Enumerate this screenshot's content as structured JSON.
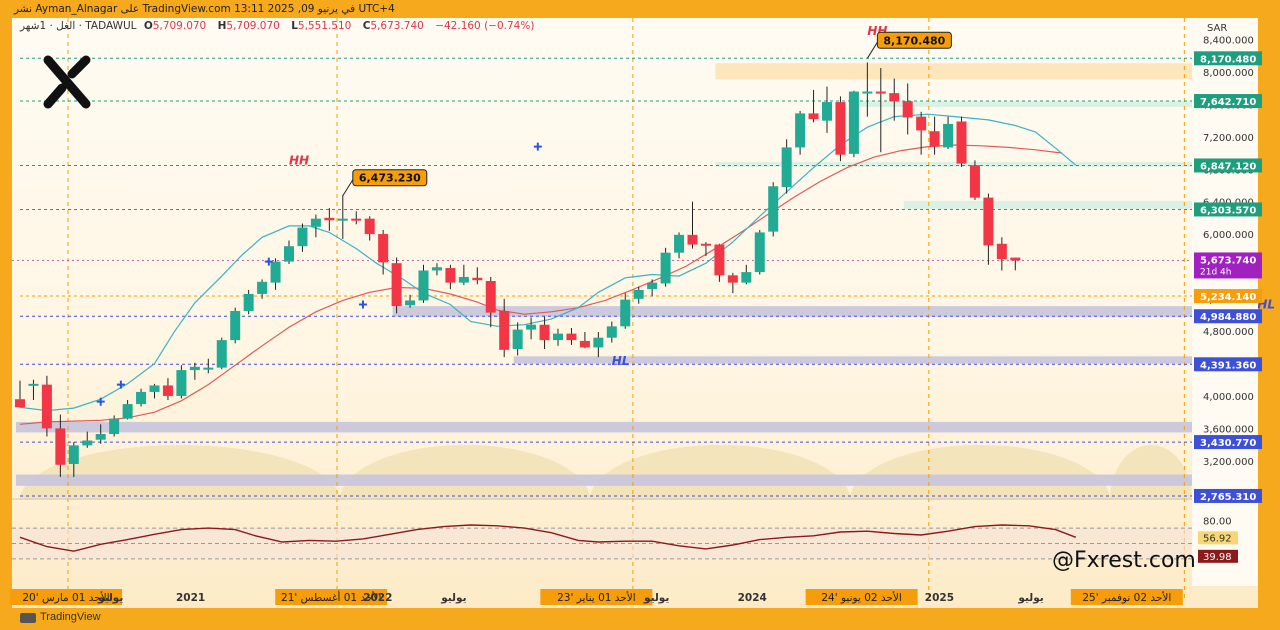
{
  "header": {
    "publish_line": "نشر Ayman_Alnagar على TradingView.com في يرنيو 09, 2025 13:11 UTC+4",
    "symbol_line": "الغل · 1شهر · TADAWUL",
    "o_label": "O",
    "o_value": "5,709.070",
    "h_label": "H",
    "h_value": "5,709.070",
    "l_label": "L",
    "l_value": "5,551.510",
    "c_label": "C",
    "c_value": "5,673.740",
    "change": "−42.160 (−0.74%)",
    "currency": "SAR"
  },
  "watermark": "@Fxrest.com",
  "brand_footer": "TradingView",
  "colors": {
    "up": "#22ab94",
    "down": "#f23645",
    "ema_fast": "#3bb3c3",
    "ema_slow": "#e05a5a",
    "zone_purple": "#c8c4dd",
    "zone_green": "#d6efe3",
    "zone_orange": "#fde3b6",
    "label_green": "#1f9e7d",
    "label_blue": "#3e4fd8",
    "label_orange": "#f59d0a",
    "current_price": "#a020c0",
    "rsi_line": "#8b1a1a"
  },
  "chart_data": {
    "type": "candlestick",
    "timeframe": "monthly",
    "candles": [
      [
        3960,
        3860,
        4190,
        3860
      ],
      [
        4150,
        4150,
        4200,
        3950
      ],
      [
        4140,
        3600,
        4250,
        3500
      ],
      [
        3600,
        3150,
        3770,
        3000
      ],
      [
        3160,
        3390,
        3430,
        3000
      ],
      [
        3390,
        3450,
        3560,
        3360
      ],
      [
        3460,
        3530,
        3650,
        3410
      ],
      [
        3530,
        3720,
        3760,
        3500
      ],
      [
        3720,
        3900,
        3950,
        3710
      ],
      [
        3900,
        4050,
        4090,
        3870
      ],
      [
        4050,
        4130,
        4150,
        3970
      ],
      [
        4130,
        4000,
        4220,
        3950
      ],
      [
        4000,
        4320,
        4380,
        3970
      ],
      [
        4320,
        4360,
        4410,
        4200
      ],
      [
        4350,
        4350,
        4460,
        4280
      ],
      [
        4350,
        4690,
        4720,
        4330
      ],
      [
        4690,
        5050,
        5090,
        4650
      ],
      [
        5050,
        5260,
        5310,
        5010
      ],
      [
        5260,
        5410,
        5440,
        5200
      ],
      [
        5400,
        5660,
        5700,
        5310
      ],
      [
        5660,
        5850,
        5920,
        5630
      ],
      [
        5850,
        6080,
        6130,
        5780
      ],
      [
        6090,
        6190,
        6240,
        5960
      ],
      [
        6200,
        6170,
        6320,
        6040
      ],
      [
        6170,
        6190,
        6480,
        5940
      ],
      [
        6190,
        6180,
        6280,
        6120
      ],
      [
        6190,
        6000,
        6220,
        5920
      ],
      [
        6000,
        5650,
        6050,
        5500
      ],
      [
        5640,
        5110,
        5710,
        5020
      ],
      [
        5120,
        5180,
        5250,
        5090
      ],
      [
        5180,
        5550,
        5620,
        5150
      ],
      [
        5550,
        5590,
        5640,
        5490
      ],
      [
        5580,
        5400,
        5620,
        5320
      ],
      [
        5400,
        5470,
        5620,
        5370
      ],
      [
        5460,
        5430,
        5590,
        5380
      ],
      [
        5420,
        5030,
        5470,
        4850
      ],
      [
        5050,
        4570,
        5200,
        4480
      ],
      [
        4580,
        4820,
        4910,
        4500
      ],
      [
        4820,
        4880,
        4970,
        4700
      ],
      [
        4880,
        4690,
        4980,
        4580
      ],
      [
        4690,
        4770,
        4830,
        4620
      ],
      [
        4770,
        4690,
        4840,
        4630
      ],
      [
        4680,
        4600,
        4790,
        4590
      ],
      [
        4600,
        4720,
        4790,
        4480
      ],
      [
        4720,
        4860,
        4920,
        4660
      ],
      [
        4860,
        5190,
        5270,
        4830
      ],
      [
        5200,
        5310,
        5350,
        5140
      ],
      [
        5320,
        5400,
        5440,
        5230
      ],
      [
        5390,
        5770,
        5830,
        5350
      ],
      [
        5770,
        5990,
        6020,
        5700
      ],
      [
        5990,
        5870,
        6400,
        5820
      ],
      [
        5880,
        5860,
        5900,
        5730
      ],
      [
        5870,
        5490,
        5880,
        5410
      ],
      [
        5490,
        5400,
        5520,
        5270
      ],
      [
        5400,
        5530,
        5620,
        5380
      ],
      [
        5530,
        6020,
        6050,
        5500
      ],
      [
        6030,
        6590,
        6640,
        5970
      ],
      [
        6580,
        7070,
        7170,
        6500
      ],
      [
        7070,
        7490,
        7520,
        6980
      ],
      [
        7490,
        7420,
        7780,
        7380
      ],
      [
        7400,
        7630,
        7820,
        7250
      ],
      [
        7630,
        6980,
        7700,
        6900
      ],
      [
        6990,
        7760,
        7770,
        6950
      ],
      [
        7740,
        7760,
        8120,
        7450
      ],
      [
        7760,
        7740,
        8050,
        7010
      ],
      [
        7740,
        7640,
        7920,
        7400
      ],
      [
        7640,
        7440,
        7860,
        7230
      ],
      [
        7450,
        7280,
        7510,
        6980
      ],
      [
        7270,
        7080,
        7450,
        6980
      ],
      [
        7070,
        7360,
        7450,
        7050
      ],
      [
        7390,
        6870,
        7450,
        6830
      ],
      [
        6850,
        6450,
        6910,
        6420
      ],
      [
        6450,
        5860,
        6500,
        5620
      ],
      [
        5880,
        5690,
        5960,
        5550
      ],
      [
        5709,
        5674,
        5709,
        5552
      ]
    ],
    "ema_fast": [
      [
        0,
        3860
      ],
      [
        4,
        3820
      ],
      [
        8,
        3850
      ],
      [
        12,
        3960
      ],
      [
        16,
        4150
      ],
      [
        20,
        4400
      ],
      [
        23,
        4800
      ],
      [
        26,
        5150
      ],
      [
        30,
        5480
      ],
      [
        33,
        5740
      ],
      [
        36,
        5960
      ],
      [
        40,
        6100
      ],
      [
        43,
        6100
      ],
      [
        46,
        6020
      ],
      [
        50,
        5820
      ],
      [
        53,
        5640
      ],
      [
        57,
        5440
      ],
      [
        60,
        5270
      ],
      [
        64,
        5130
      ],
      [
        67,
        4920
      ],
      [
        71,
        4860
      ],
      [
        75,
        4880
      ],
      [
        79,
        4950
      ],
      [
        83,
        5090
      ],
      [
        86,
        5280
      ],
      [
        90,
        5460
      ],
      [
        94,
        5500
      ],
      [
        98,
        5480
      ],
      [
        102,
        5640
      ],
      [
        106,
        5900
      ],
      [
        110,
        6220
      ],
      [
        114,
        6520
      ],
      [
        118,
        6820
      ],
      [
        122,
        7100
      ],
      [
        126,
        7320
      ],
      [
        130,
        7450
      ],
      [
        135,
        7480
      ],
      [
        139,
        7450
      ],
      [
        144,
        7410
      ],
      [
        148,
        7340
      ],
      [
        151,
        7260
      ],
      [
        154,
        7060
      ],
      [
        157,
        6850
      ]
    ],
    "ema_slow": [
      [
        0,
        3650
      ],
      [
        4,
        3680
      ],
      [
        8,
        3690
      ],
      [
        12,
        3700
      ],
      [
        16,
        3730
      ],
      [
        20,
        3800
      ],
      [
        24,
        3940
      ],
      [
        28,
        4140
      ],
      [
        32,
        4380
      ],
      [
        36,
        4620
      ],
      [
        40,
        4850
      ],
      [
        44,
        5040
      ],
      [
        48,
        5180
      ],
      [
        52,
        5280
      ],
      [
        56,
        5340
      ],
      [
        60,
        5330
      ],
      [
        64,
        5260
      ],
      [
        68,
        5160
      ],
      [
        71,
        5060
      ],
      [
        75,
        5010
      ],
      [
        79,
        5040
      ],
      [
        83,
        5090
      ],
      [
        87,
        5180
      ],
      [
        91,
        5310
      ],
      [
        95,
        5450
      ],
      [
        99,
        5600
      ],
      [
        103,
        5800
      ],
      [
        107,
        6010
      ],
      [
        111,
        6230
      ],
      [
        115,
        6450
      ],
      [
        119,
        6650
      ],
      [
        123,
        6820
      ],
      [
        127,
        6950
      ],
      [
        131,
        7030
      ],
      [
        135,
        7080
      ],
      [
        139,
        7100
      ],
      [
        143,
        7090
      ],
      [
        147,
        7070
      ],
      [
        151,
        7040
      ],
      [
        155,
        7000
      ]
    ],
    "zones": [
      {
        "kind": "purple",
        "from": 3550,
        "to": 3680,
        "start": 0
      },
      {
        "kind": "purple",
        "from": 2890,
        "to": 3030,
        "start": 0
      },
      {
        "kind": "purple",
        "from": 4980,
        "to": 5110,
        "start": 28
      },
      {
        "kind": "purple",
        "from": 4400,
        "to": 4490,
        "start": 37
      },
      {
        "kind": "green",
        "from": 6830,
        "to": 6890,
        "start": 52
      },
      {
        "kind": "green",
        "from": 7570,
        "to": 7640,
        "start": 62
      },
      {
        "kind": "green",
        "from": 6310,
        "to": 6410,
        "start": 66
      },
      {
        "kind": "orange",
        "from": 7910,
        "to": 8110,
        "start": 52
      }
    ],
    "price_levels": [
      {
        "value": 8170.48,
        "label": "8,170.480",
        "color": "#1f9e7d"
      },
      {
        "value": 7642.71,
        "label": "7,642.710",
        "color": "#1f9e7d"
      },
      {
        "value": 6847.12,
        "label": "6,847.120",
        "color": "#1f9e7d"
      },
      {
        "value": 6303.57,
        "label": "6,303.570",
        "color": "#1f9e7d"
      },
      {
        "value": 5234.14,
        "label": "5,234.140",
        "color": "#f59d0a"
      },
      {
        "value": 4984.88,
        "label": "4,984.880",
        "color": "#3e4fd8"
      },
      {
        "value": 4391.36,
        "label": "4,391.360",
        "color": "#3e4fd8"
      },
      {
        "value": 3430.77,
        "label": "3,430.770",
        "color": "#3e4fd8"
      },
      {
        "value": 2765.31,
        "label": "2,765.310",
        "color": "#3e4fd8"
      }
    ],
    "current_price": {
      "value": 5673.74,
      "label": "5,673.740",
      "countdown": "21d 4h"
    },
    "y_ticks": [
      "8,400.000",
      "8,000.000",
      "7,600.000",
      "7,200.000",
      "6,800.000",
      "6,400.000",
      "6,000.000",
      "5,600.000",
      "5,200.000",
      "4,800.000",
      "4,400.000",
      "4,000.000",
      "3,600.000",
      "3,200.000",
      "2,800.000"
    ],
    "y_tick_values": [
      8400,
      8000,
      7600,
      7200,
      6800,
      6400,
      6000,
      5600,
      5200,
      4800,
      4400,
      4000,
      3600,
      3200,
      2800
    ],
    "ylim": [
      2740,
      8520
    ],
    "annotations": [
      {
        "text": "HH",
        "index": 20,
        "price": 6860,
        "color": "#e0354b"
      },
      {
        "text": "HH",
        "index": 63,
        "price": 8460,
        "color": "#e0354b"
      },
      {
        "text": "HL",
        "index": 44,
        "price": 4380,
        "color": "#3e4fd8"
      },
      {
        "text": "HL",
        "index": 92,
        "price": 5080,
        "color": "#3e4fd8"
      }
    ],
    "callouts": [
      {
        "label": "6,473.230",
        "index": 24,
        "price": 6473.23
      },
      {
        "label": "8,170.480",
        "index": 63,
        "price": 8170.48
      }
    ],
    "cross_markers": [
      [
        12,
        3930
      ],
      [
        15,
        4140
      ],
      [
        37,
        5660
      ],
      [
        51,
        5130
      ],
      [
        77,
        7080
      ]
    ],
    "rsi": {
      "values": [
        [
          0,
          58
        ],
        [
          4,
          46
        ],
        [
          8,
          40
        ],
        [
          12,
          49
        ],
        [
          16,
          55
        ],
        [
          20,
          62
        ],
        [
          24,
          68
        ],
        [
          28,
          70
        ],
        [
          32,
          68
        ],
        [
          35,
          60
        ],
        [
          39,
          52
        ],
        [
          43,
          54
        ],
        [
          47,
          53
        ],
        [
          51,
          56
        ],
        [
          55,
          62
        ],
        [
          59,
          68
        ],
        [
          63,
          72
        ],
        [
          67,
          74
        ],
        [
          71,
          73
        ],
        [
          75,
          70
        ],
        [
          79,
          64
        ],
        [
          83,
          54
        ],
        [
          86,
          52
        ],
        [
          90,
          53
        ],
        [
          94,
          53
        ],
        [
          98,
          47
        ],
        [
          102,
          43
        ],
        [
          106,
          48
        ],
        [
          110,
          55
        ],
        [
          114,
          58
        ],
        [
          118,
          60
        ],
        [
          122,
          65
        ],
        [
          126,
          66
        ],
        [
          130,
          63
        ],
        [
          134,
          61
        ],
        [
          138,
          66
        ],
        [
          142,
          72
        ],
        [
          146,
          74
        ],
        [
          150,
          73
        ],
        [
          154,
          68
        ],
        [
          157,
          58
        ]
      ],
      "hi_line": 70,
      "lo_line": 30,
      "ticks": [
        "80.00",
        "60.00"
      ],
      "tick_values": [
        80,
        60
      ],
      "v1": "56.92",
      "v2": "39.98"
    },
    "x_labels": [
      {
        "text": "الأحد 01 مارس '20",
        "index": 0,
        "hl": true
      },
      {
        "text": "يوليو",
        "index": 5,
        "hl": false
      },
      {
        "text": "2021",
        "index": 10,
        "hl": false
      },
      {
        "text": "الأحد 01 أغسطس '21",
        "index": 17,
        "hl": true
      },
      {
        "text": "2022",
        "index": 22,
        "hl": false
      },
      {
        "text": "يوليو",
        "index": 27,
        "hl": false
      },
      {
        "text": "الأحد 01 يناير '23",
        "index": 34,
        "hl": true
      },
      {
        "text": "يوليو",
        "index": 40,
        "hl": false
      },
      {
        "text": "2024",
        "index": 46,
        "hl": false
      },
      {
        "text": "الأحد 02 يونيو '24",
        "index": 51,
        "hl": true
      },
      {
        "text": "2025",
        "index": 58,
        "hl": false
      },
      {
        "text": "يوليو",
        "index": 64,
        "hl": false
      },
      {
        "text": "الأحد 02 نوفمبر '25",
        "index": 68,
        "hl": true
      }
    ]
  }
}
